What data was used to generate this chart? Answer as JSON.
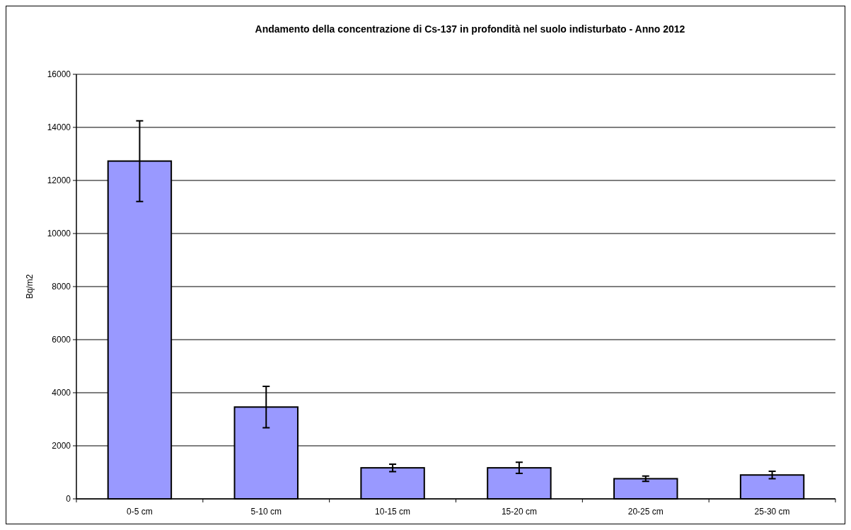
{
  "chart_data": {
    "type": "bar",
    "title": "Andamento della concentrazione di Cs-137 in profondità nel suolo indisturbato - Anno 2012",
    "ylabel": "Bq/m2",
    "categories": [
      "0-5 cm",
      "5-10 cm",
      "10-15 cm",
      "15-20 cm",
      "20-25 cm",
      "25-30 cm"
    ],
    "values": [
      12730,
      3460,
      1170,
      1170,
      760,
      900
    ],
    "errors": [
      1520,
      780,
      140,
      210,
      100,
      140
    ],
    "color": "#9999ff",
    "ylim": [
      0,
      16000
    ],
    "yticks": [
      0,
      2000,
      4000,
      6000,
      8000,
      10000,
      12000,
      14000,
      16000
    ],
    "grid": "y"
  }
}
